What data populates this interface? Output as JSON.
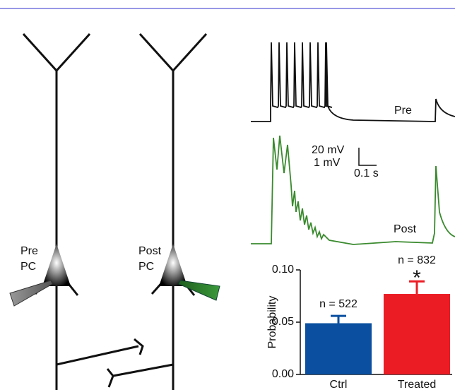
{
  "diagram": {
    "pre_label": [
      "Pre",
      "PC"
    ],
    "post_label": [
      "Post",
      "PC"
    ]
  },
  "traces": {
    "pre": "Pre",
    "post": "Post",
    "scale_voltage_pre": "20 mV",
    "scale_voltage_post": "1 mV",
    "scale_time": "0.1 s"
  },
  "chart_data": {
    "type": "bar",
    "y_label": "Probability",
    "categories": [
      "Ctrl",
      "Treated"
    ],
    "values": [
      0.049,
      0.077
    ],
    "errors": [
      0.007,
      0.012
    ],
    "colors": [
      "#0a4fa0",
      "#ec1c24"
    ],
    "annotations": [
      "n = 522",
      "n = 832",
      "*"
    ],
    "ylim": [
      0,
      0.1
    ],
    "yticks": [
      {
        "value": 0,
        "label": "0.00"
      },
      {
        "value": 0.05,
        "label": "0.05"
      },
      {
        "value": 0.1,
        "label": "0.10"
      }
    ]
  }
}
